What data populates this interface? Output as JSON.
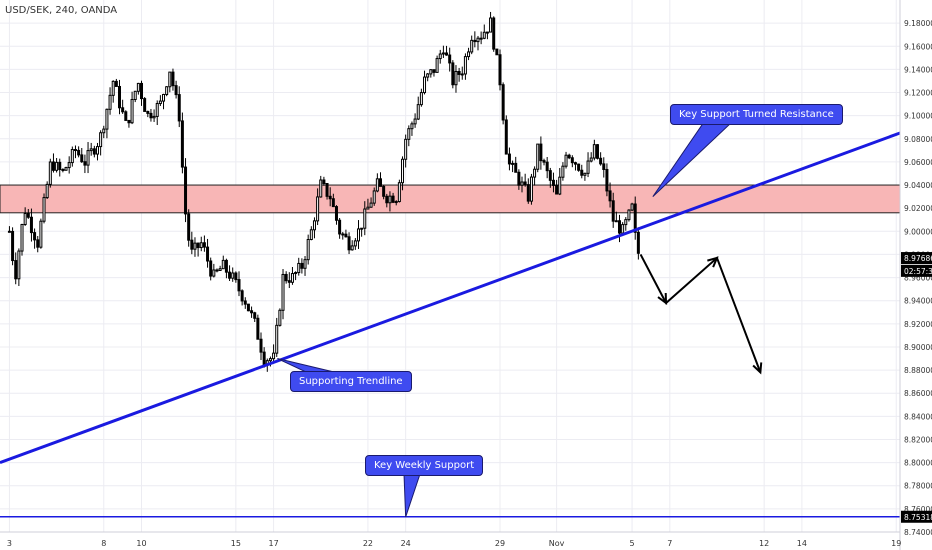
{
  "header": {
    "symbol": "USD/SEK, 240, OANDA"
  },
  "colors": {
    "up_body": "#ffffff",
    "down_body": "#000000",
    "wick": "#000000",
    "trendline": "#1a1ae0",
    "support_line": "#1a1ae0",
    "zone_fill": "#f8b6b6",
    "zone_border": "#222222",
    "callout_bg": "#3f4bf0",
    "price_tag_bg": "#000000",
    "arrow": "#000000",
    "grid": "#ececf2"
  },
  "chart_data": {
    "type": "candlestick",
    "title": "USD/SEK, 240, OANDA",
    "y_axis": {
      "ylim": [
        8.74,
        9.2
      ],
      "ticks": [
        "9.18000",
        "9.16000",
        "9.14000",
        "9.12000",
        "9.10000",
        "9.08000",
        "9.06000",
        "9.04000",
        "9.02000",
        "9.00000",
        "8.98000",
        "8.96000",
        "8.94000",
        "8.92000",
        "8.90000",
        "8.88000",
        "8.86000",
        "8.84000",
        "8.82000",
        "8.80000",
        "8.78000",
        "8.76000",
        "8.74000"
      ]
    },
    "x_axis": {
      "ticks": [
        {
          "label": "3",
          "x": 0
        },
        {
          "label": "8",
          "x": 5
        },
        {
          "label": "10",
          "x": 7
        },
        {
          "label": "15",
          "x": 12
        },
        {
          "label": "17",
          "x": 14
        },
        {
          "label": "22",
          "x": 19
        },
        {
          "label": "24",
          "x": 21
        },
        {
          "label": "29",
          "x": 26
        },
        {
          "label": "Nov",
          "x": 29
        },
        {
          "label": "5",
          "x": 33
        },
        {
          "label": "7",
          "x": 35
        },
        {
          "label": "12",
          "x": 40
        },
        {
          "label": "14",
          "x": 42
        },
        {
          "label": "19",
          "x": 47
        }
      ],
      "xlim": [
        -0.5,
        47.2
      ]
    },
    "price_tags": [
      {
        "label": "8.97686",
        "y": 8.97686
      },
      {
        "label": "02:57:34",
        "y": 8.9658
      },
      {
        "label": "8.75318",
        "y": 8.75318
      }
    ],
    "candles_per_day": 6,
    "candle_anchors": [
      [
        0,
        9.0
      ],
      [
        0.3,
        8.96
      ],
      [
        0.8,
        9.02
      ],
      [
        1.5,
        8.99
      ],
      [
        2.2,
        9.06
      ],
      [
        2.8,
        9.05
      ],
      [
        3.5,
        9.07
      ],
      [
        4,
        9.06
      ],
      [
        4.8,
        9.08
      ],
      [
        5.5,
        9.13
      ],
      [
        6.2,
        9.09
      ],
      [
        6.8,
        9.13
      ],
      [
        7.3,
        9.1
      ],
      [
        8,
        9.11
      ],
      [
        8.5,
        9.14
      ],
      [
        9,
        9.1
      ],
      [
        9.3,
        9.02
      ],
      [
        9.6,
        8.98
      ],
      [
        10.2,
        8.99
      ],
      [
        10.8,
        8.96
      ],
      [
        11.3,
        8.97
      ],
      [
        11.8,
        8.96
      ],
      [
        12.5,
        8.94
      ],
      [
        13,
        8.92
      ],
      [
        13.5,
        8.89
      ],
      [
        14,
        8.89
      ],
      [
        14.5,
        8.96
      ],
      [
        15,
        8.96
      ],
      [
        15.5,
        8.97
      ],
      [
        16,
        9.0
      ],
      [
        16.5,
        9.04
      ],
      [
        17,
        9.03
      ],
      [
        17.5,
        9.0
      ],
      [
        18,
        8.99
      ],
      [
        18.5,
        9.0
      ],
      [
        19,
        9.02
      ],
      [
        19.5,
        9.04
      ],
      [
        20,
        9.03
      ],
      [
        20.5,
        9.03
      ],
      [
        21,
        9.08
      ],
      [
        21.5,
        9.1
      ],
      [
        22,
        9.13
      ],
      [
        22.5,
        9.14
      ],
      [
        23,
        9.16
      ],
      [
        23.5,
        9.13
      ],
      [
        24,
        9.14
      ],
      [
        24.5,
        9.17
      ],
      [
        25,
        9.17
      ],
      [
        25.5,
        9.18
      ],
      [
        26,
        9.13
      ],
      [
        26.4,
        9.06
      ],
      [
        26.8,
        9.05
      ],
      [
        27.5,
        9.03
      ],
      [
        28,
        9.07
      ],
      [
        28.5,
        9.05
      ],
      [
        29,
        9.03
      ],
      [
        29.5,
        9.07
      ],
      [
        30,
        9.06
      ],
      [
        30.5,
        9.05
      ],
      [
        31,
        9.07
      ],
      [
        31.5,
        9.05
      ],
      [
        32,
        9.01
      ],
      [
        32.5,
        9.0
      ],
      [
        33,
        9.02
      ],
      [
        33.2,
        8.99
      ],
      [
        33.4,
        8.977
      ]
    ]
  },
  "annotations": {
    "zone": {
      "y_top": 9.04,
      "y_bottom": 9.016,
      "x_start": -0.5,
      "x_end": 47.2
    },
    "trendline": {
      "x1": -0.5,
      "y1": 8.8,
      "x2": 47.2,
      "y2": 9.085
    },
    "support_line": {
      "y": 8.75318
    },
    "arrow_path": [
      [
        33.45,
        8.98
      ],
      [
        34.8,
        8.938
      ],
      [
        37.5,
        8.977
      ],
      [
        39.8,
        8.878
      ]
    ],
    "callouts": [
      {
        "id": "key-support-turned-resistance",
        "text": "Key Support Turned Resistance",
        "anchor_x": 34.1,
        "anchor_y": 9.03
      },
      {
        "id": "supporting-trendline",
        "text": "Supporting Trendline",
        "anchor_x": 14.2,
        "anchor_y": 8.89
      },
      {
        "id": "key-weekly-support",
        "text": "Key Weekly Support",
        "anchor_x": 21.0,
        "anchor_y": 8.753
      }
    ]
  }
}
